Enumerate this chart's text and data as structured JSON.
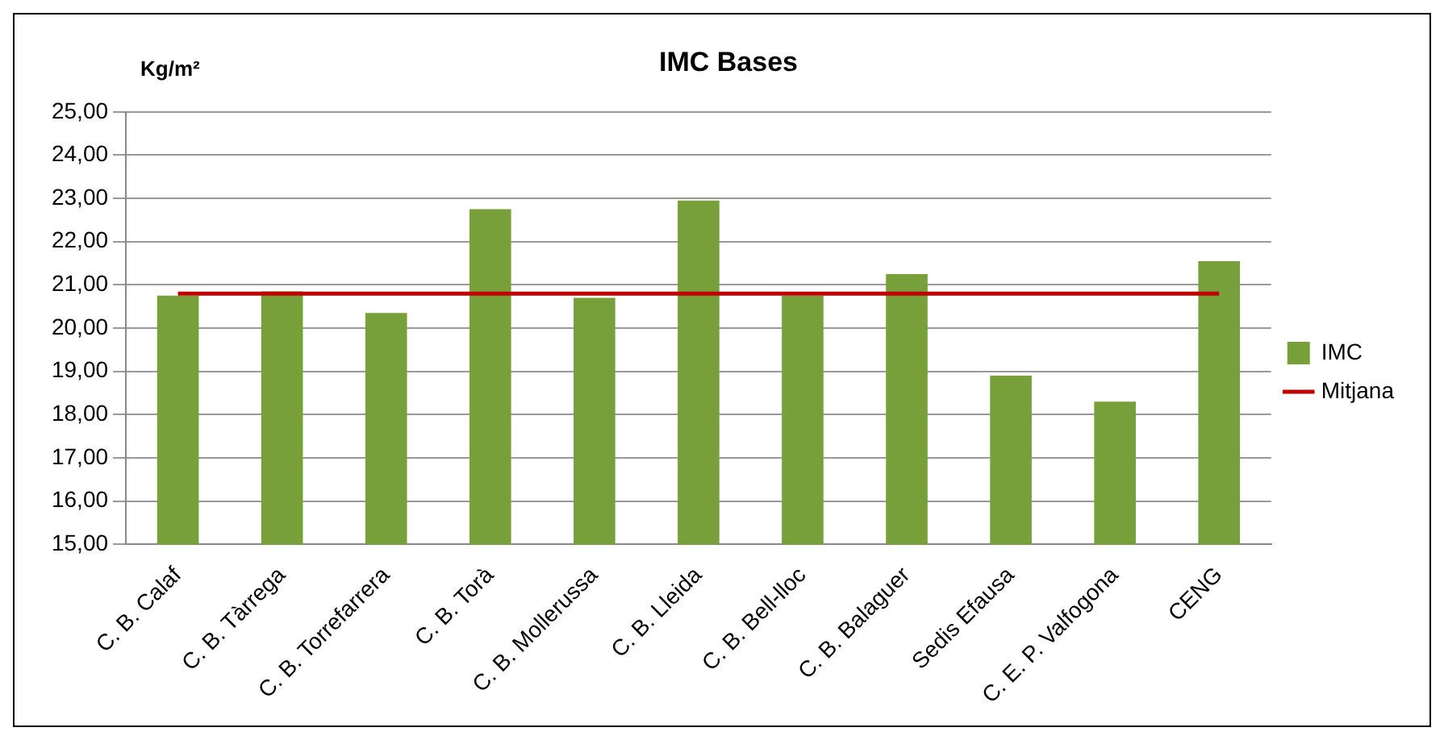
{
  "chart_data": {
    "type": "bar",
    "title": "IMC Bases",
    "ylabel": "Kg/m²",
    "categories": [
      "C. B. Calaf",
      "C. B. Tàrrega",
      "C. B. Torrefarrera",
      "C. B. Torà",
      "C. B. Mollerussa",
      "C. B. Lleida",
      "C. B. Bell-lloc",
      "C. B. Balaguer",
      "Sedis Efausa",
      "C. E. P. Valfogona",
      "CENG"
    ],
    "series": [
      {
        "name": "IMC",
        "color": "#77a03a",
        "values": [
          20.75,
          20.85,
          20.35,
          22.75,
          20.7,
          22.95,
          20.75,
          21.25,
          18.9,
          18.3,
          21.55
        ]
      },
      {
        "name": "Mitjana",
        "type": "line",
        "color": "#c00000",
        "values": [
          20.8,
          20.8,
          20.8,
          20.8,
          20.8,
          20.8,
          20.8,
          20.8,
          20.8,
          20.8,
          20.8
        ]
      }
    ],
    "ylim": [
      15,
      25
    ],
    "yticks": [
      {
        "value": 15,
        "label": "15,00"
      },
      {
        "value": 16,
        "label": "16,00"
      },
      {
        "value": 17,
        "label": "17,00"
      },
      {
        "value": 18,
        "label": "18,00"
      },
      {
        "value": 19,
        "label": "19,00"
      },
      {
        "value": 20,
        "label": "20,00"
      },
      {
        "value": 21,
        "label": "21,00"
      },
      {
        "value": 22,
        "label": "22,00"
      },
      {
        "value": 23,
        "label": "23,00"
      },
      {
        "value": 24,
        "label": "24,00"
      },
      {
        "value": 25,
        "label": "25,00"
      }
    ],
    "grid": "y",
    "legend": "right",
    "marker": "none",
    "line_style": "solid"
  }
}
